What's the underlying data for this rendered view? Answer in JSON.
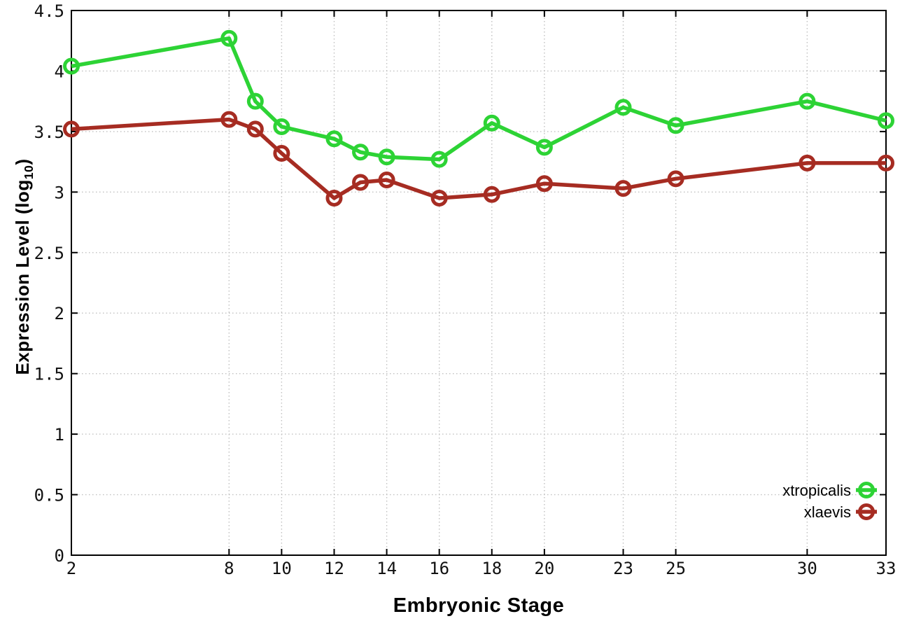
{
  "chart_data": {
    "type": "line",
    "title": "",
    "xlabel": "Embryonic Stage",
    "ylabel": "Expression Level (log10)",
    "ylabel_parts": {
      "pre": "Expression Level (log",
      "sub": "10",
      "post": ")"
    },
    "x": [
      2,
      8,
      9,
      10,
      12,
      13,
      14,
      16,
      18,
      20,
      23,
      25,
      30,
      33
    ],
    "series": [
      {
        "name": "xtropicalis",
        "color": "#2dd335",
        "values": [
          4.04,
          4.27,
          3.75,
          3.54,
          3.44,
          3.33,
          3.29,
          3.27,
          3.57,
          3.37,
          3.7,
          3.55,
          3.75,
          3.59
        ]
      },
      {
        "name": "xlaevis",
        "color": "#a62c22",
        "values": [
          3.52,
          3.6,
          3.52,
          3.32,
          2.95,
          3.08,
          3.1,
          2.95,
          2.98,
          3.07,
          3.03,
          3.11,
          3.24,
          3.24
        ]
      }
    ],
    "x_ticks": [
      2,
      8,
      10,
      12,
      14,
      16,
      18,
      20,
      23,
      25,
      30,
      33
    ],
    "y_ticks": [
      0,
      0.5,
      1,
      1.5,
      2,
      2.5,
      3,
      3.5,
      4,
      4.5
    ],
    "y_tick_labels": [
      "0",
      "0.5",
      "1",
      "1.5",
      "2",
      "2.5",
      "3",
      "3.5",
      "4",
      "4.5"
    ],
    "xlim": [
      2,
      33
    ],
    "ylim": [
      0,
      4.5
    ],
    "grid": true,
    "legend_position": "bottom-right",
    "marker": "open-circle",
    "colors": {
      "background": "#ffffff",
      "axis": "#000000",
      "grid": "#c0c0c0",
      "tick_label": "#111111"
    }
  }
}
